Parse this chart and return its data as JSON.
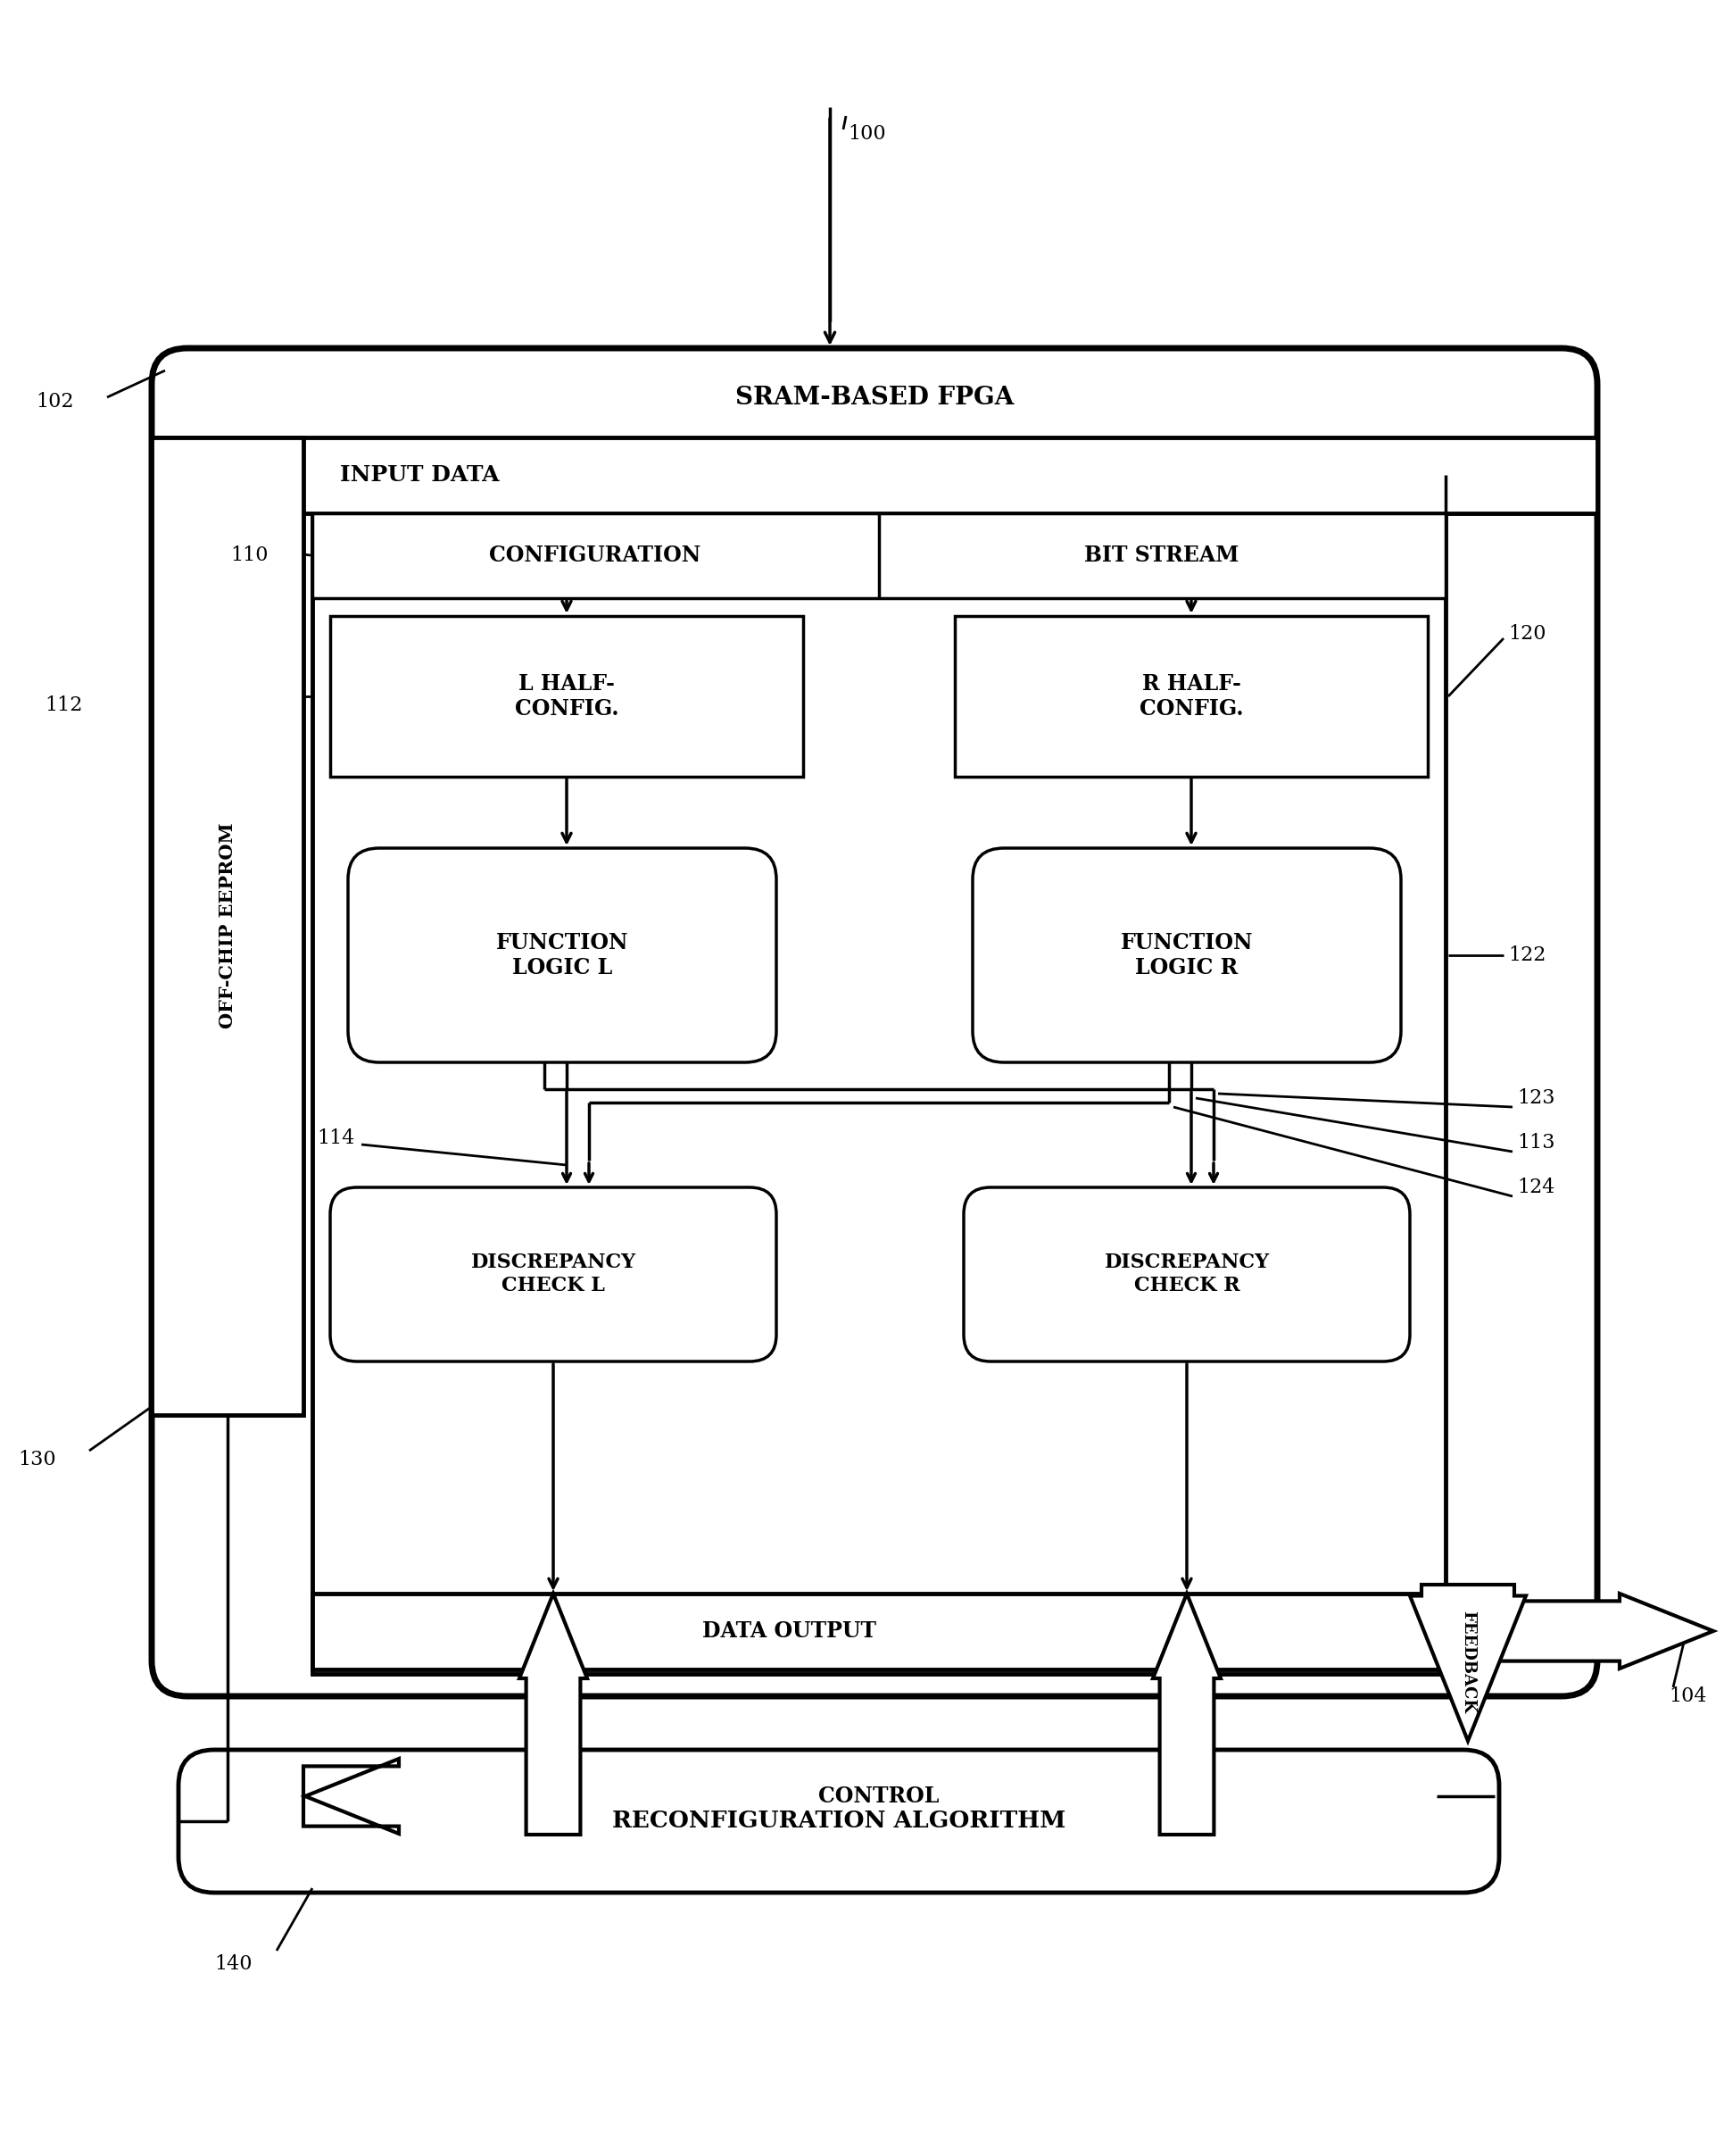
{
  "fig_width": 19.33,
  "fig_height": 24.15,
  "bg_color": "#ffffff",
  "lc": "#000000",
  "label_100": "100",
  "label_102": "102",
  "label_104": "104",
  "label_110": "110",
  "label_112": "112",
  "label_113": "113",
  "label_114": "114",
  "label_120": "120",
  "label_122": "122",
  "label_123": "123",
  "label_124": "124",
  "label_130": "130",
  "label_140": "140",
  "text_fpga": "SRAM-BASED FPGA",
  "text_input_data": "INPUT DATA",
  "text_configuration": "CONFIGURATION",
  "text_bit_stream": "BIT STREAM",
  "text_l_half": "L HALF-\nCONFIG.",
  "text_r_half": "R HALF-\nCONFIG.",
  "text_func_l": "FUNCTION\nLOGIC L",
  "text_func_r": "FUNCTION\nLOGIC R",
  "text_disc_l": "DISCREPANCY\nCHECK L",
  "text_disc_r": "DISCREPANCY\nCHECK R",
  "text_data_output": "DATA OUTPUT",
  "text_control": "CONTROL",
  "text_feedback": "FEEDBACK",
  "text_reconfig": "RECONFIGURATION ALGORITHM",
  "text_off_chip": "OFF-CHIP EEPROM"
}
